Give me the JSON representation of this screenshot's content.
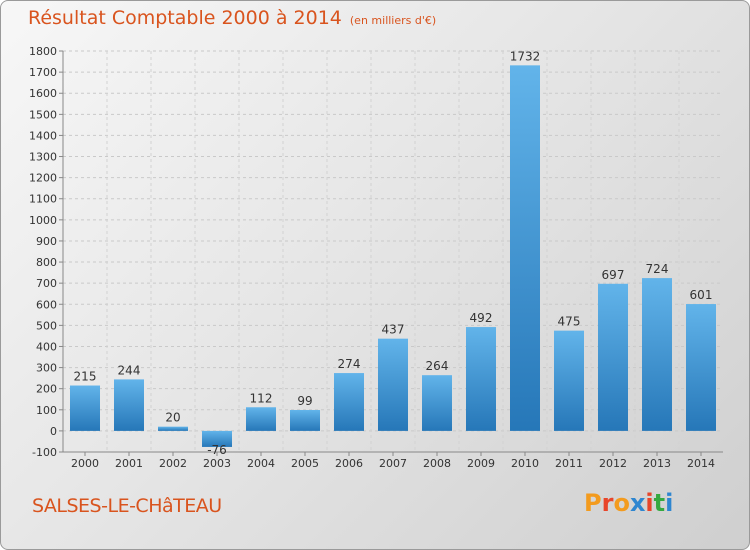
{
  "header": {
    "title": "Résultat Comptable 2000 à 2014",
    "unit": "(en milliers d'€)"
  },
  "footer": {
    "commune": "SALSES-LE-CHâTEAU",
    "logo_text": "Proxiti"
  },
  "colors": {
    "title": "#d9541e",
    "bar_top": "#62b4ea",
    "bar_bottom": "#2677b8",
    "logo": [
      "#f39b1e",
      "#e8452a",
      "#f39b1e",
      "#2e86d0",
      "#e8452a",
      "#35a940",
      "#2e86d0"
    ]
  },
  "chart_data": {
    "type": "bar",
    "title": "Résultat Comptable 2000 à 2014",
    "subtitle": "(en milliers d'€)",
    "categories": [
      "2000",
      "2001",
      "2002",
      "2003",
      "2004",
      "2005",
      "2006",
      "2007",
      "2008",
      "2009",
      "2010",
      "2011",
      "2012",
      "2013",
      "2014"
    ],
    "values": [
      215,
      244,
      20,
      -76,
      112,
      99,
      274,
      437,
      264,
      492,
      1732,
      475,
      697,
      724,
      601
    ],
    "ylim": [
      -100,
      1800
    ],
    "yticks": [
      -100,
      0,
      100,
      200,
      300,
      400,
      500,
      600,
      700,
      800,
      900,
      1000,
      1100,
      1200,
      1300,
      1400,
      1500,
      1600,
      1700,
      1800
    ],
    "grid": true,
    "legend": "none"
  }
}
